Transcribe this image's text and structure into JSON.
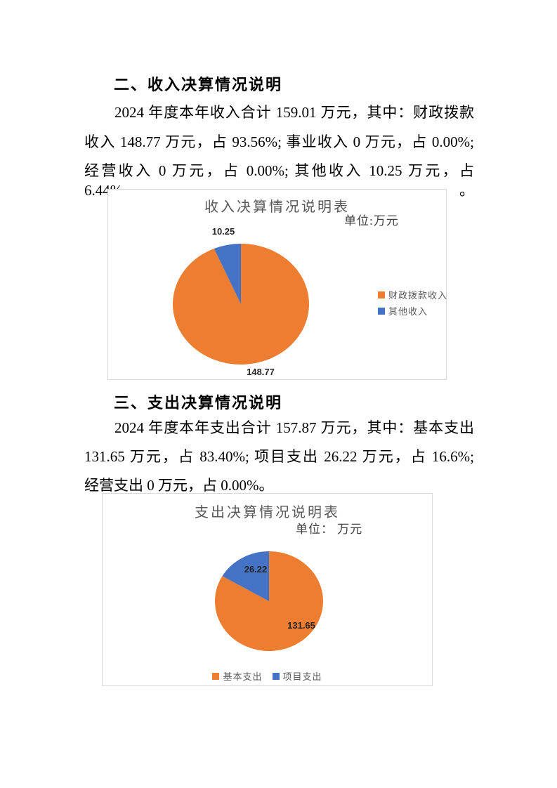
{
  "document": {
    "income_section": {
      "heading": "二、收入决算情况说明",
      "lines": [
        "2024 年度本年收入合计 159.01 万元，其中：财政拨款",
        "收入 148.77 万元，占 93.56%; 事业收入 0 万元，占 0.00%;",
        "经营收入 0 万元，占 0.00%; 其他收入 10.25 万元，占 6.44%。"
      ]
    },
    "expense_section": {
      "heading": "三、支出决算情况说明",
      "lines": [
        "2024 年度本年支出合计 157.87 万元，其中：基本支出",
        "131.65 万元，占 83.40%; 项目支出 26.22 万元，占 16.6%;",
        "经营支出 0 万元，占 0.00%。"
      ]
    }
  },
  "chart_data": [
    {
      "type": "pie",
      "title": "收入决算情况说明表",
      "unit_label": "单位:万元",
      "legend_position": "right",
      "start_angle_deg": 0,
      "direction": "clockwise",
      "total": 159.01,
      "slices": [
        {
          "label": "财政拨款收入",
          "value": 148.77,
          "color": "#ED7D31",
          "label_position": "outside-bottom"
        },
        {
          "label": "其他收入",
          "value": 10.25,
          "color": "#4472C4",
          "label_position": "outside-top"
        }
      ]
    },
    {
      "type": "pie",
      "title": "支出决算情况说明表",
      "unit_label": "单位： 万元",
      "legend_position": "bottom",
      "start_angle_deg": 0,
      "direction": "clockwise",
      "total": 157.87,
      "slices": [
        {
          "label": "基本支出",
          "value": 131.65,
          "color": "#ED7D31",
          "label_position": "inside"
        },
        {
          "label": "项目支出",
          "value": 26.22,
          "color": "#4472C4",
          "label_position": "inside"
        }
      ]
    }
  ],
  "colors": {
    "orange": "#ED7D31",
    "blue": "#4472C4",
    "chart_border": "#D9D9D9",
    "chart_text": "#595959",
    "body_text": "#000000"
  }
}
